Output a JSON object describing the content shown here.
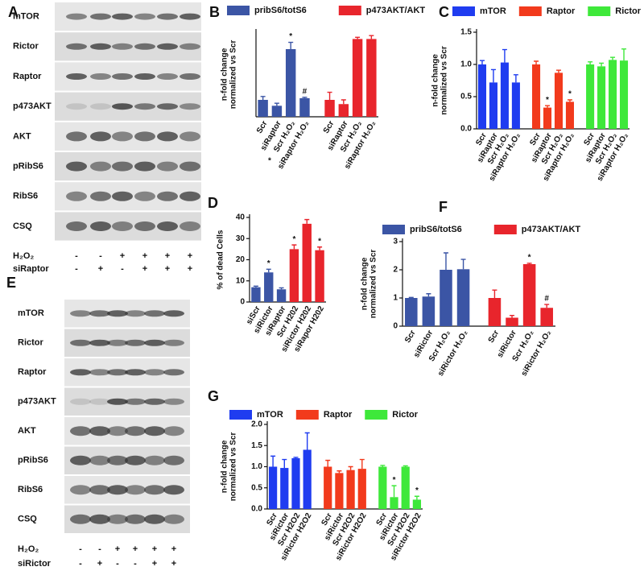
{
  "blots": [
    {
      "panel": "A",
      "rows": [
        "mTOR",
        "Rictor",
        "Raptor",
        "p473AKT",
        "AKT",
        "pRibS6",
        "RibS6",
        "CSQ"
      ],
      "treatments": [
        {
          "label": "H₂O₂",
          "marks": [
            "-",
            "-",
            "+",
            "+",
            "+",
            "+"
          ]
        },
        {
          "label": "siRaptor",
          "marks": [
            "-",
            "+",
            "-",
            "+",
            "+",
            "+"
          ]
        }
      ]
    },
    {
      "panel": "E",
      "rows": [
        "mTOR",
        "Rictor",
        "Raptor",
        "p473AKT",
        "AKT",
        "pRibS6",
        "RibS6",
        "CSQ"
      ],
      "treatments": [
        {
          "label": "H₂O₂",
          "marks": [
            "-",
            "-",
            "+",
            "+",
            "+",
            "+"
          ]
        },
        {
          "label": "siRictor",
          "marks": [
            "-",
            "+",
            "-",
            "-",
            "+",
            "+"
          ]
        }
      ]
    }
  ],
  "chart_data": [
    {
      "type": "bar",
      "panel": "B",
      "ylabel": [
        "n-fold change",
        "normalized vs Scr"
      ],
      "ylim": [
        0,
        5
      ],
      "categories": [
        "Scr",
        "siRaptor",
        "Scr H₂O₂",
        "siRaptor H₂O₂",
        "Scr",
        "siRaptor",
        "Scr H₂O₂",
        "siRaptor H₂O₂"
      ],
      "series": [
        {
          "name": "pribS6/totS6",
          "color": "#3b55a5",
          "values": [
            1.0,
            0.65,
            4.0,
            1.1,
            null,
            null,
            null,
            null
          ],
          "errors": [
            0.2,
            0.15,
            0.4,
            0.05,
            null,
            null,
            null,
            null
          ],
          "markers": [
            null,
            null,
            "*",
            "#",
            null,
            null,
            null,
            null
          ]
        },
        {
          "name": "p473AKT/AKT",
          "color": "#e8252c",
          "values": [
            null,
            null,
            null,
            null,
            1.0,
            0.75,
            4.6,
            4.6
          ],
          "errors": [
            null,
            null,
            null,
            null,
            0.45,
            0.25,
            0.1,
            0.2
          ],
          "markers": [
            null,
            null,
            null,
            null,
            null,
            null,
            null,
            null
          ]
        }
      ],
      "footnote": "*"
    },
    {
      "type": "bar",
      "panel": "C",
      "ylabel": [
        "n-fold change",
        "normalized vs Scr"
      ],
      "ylim": [
        0,
        1.5
      ],
      "yticks": [
        {
          "value": 0,
          "label": "0.0"
        },
        {
          "value": 0.5,
          "label": "0.5"
        },
        {
          "value": 1,
          "label": "1.0"
        },
        {
          "value": 1.5,
          "label": "1.5"
        }
      ],
      "categories": [
        "Scr",
        "siRaptor",
        "Scr H₂O₂",
        "siRaptor H₂O₂",
        "Scr",
        "siRaptor",
        "Scr H₂O₂",
        "siRaptor H₂O₂",
        "Scr",
        "siRaptor",
        "Scr H₂O₂",
        "siRaptor H₂O₂"
      ],
      "series": [
        {
          "name": "mTOR",
          "color": "#1f3cf0",
          "values": [
            1.0,
            0.72,
            1.03,
            0.72,
            null,
            null,
            null,
            null,
            null,
            null,
            null,
            null
          ],
          "errors": [
            0.06,
            0.2,
            0.2,
            0.12,
            null,
            null,
            null,
            null,
            null,
            null,
            null,
            null
          ],
          "markers": [
            null,
            null,
            null,
            null,
            null,
            null,
            null,
            null,
            null,
            null,
            null,
            null
          ]
        },
        {
          "name": "Raptor",
          "color": "#f23a1c",
          "values": [
            null,
            null,
            null,
            null,
            1.0,
            0.33,
            0.87,
            0.42,
            null,
            null,
            null,
            null
          ],
          "errors": [
            null,
            null,
            null,
            null,
            0.05,
            0.03,
            0.04,
            0.03,
            null,
            null,
            null,
            null
          ],
          "markers": [
            null,
            null,
            null,
            null,
            null,
            "*",
            null,
            "*",
            null,
            null,
            null,
            null
          ]
        },
        {
          "name": "Rictor",
          "color": "#3ee83a",
          "values": [
            null,
            null,
            null,
            null,
            null,
            null,
            null,
            null,
            1.0,
            0.97,
            1.07,
            1.06
          ],
          "errors": [
            null,
            null,
            null,
            null,
            null,
            null,
            null,
            null,
            0.04,
            0.05,
            0.04,
            0.18
          ],
          "markers": [
            null,
            null,
            null,
            null,
            null,
            null,
            null,
            null,
            null,
            null,
            null,
            null
          ]
        }
      ]
    },
    {
      "type": "bar",
      "panel": "D",
      "ylabel": [
        "% of dead Cells"
      ],
      "ylim": [
        0,
        40
      ],
      "yticks": [
        0,
        10,
        20,
        30,
        40
      ],
      "categories": [
        "siScr",
        "siRictor",
        "siRaptor",
        "Scr H202",
        "siRictor H202",
        "siRapor H202"
      ],
      "values": [
        7,
        14,
        6,
        25,
        37,
        24.5
      ],
      "errors": [
        0.5,
        1.5,
        0.7,
        2,
        2,
        1.5
      ],
      "markers": [
        null,
        "*",
        null,
        "*",
        null,
        "*"
      ],
      "colors": [
        "#3b55a5",
        "#3b55a5",
        "#3b55a5",
        "#e8252c",
        "#e8252c",
        "#e8252c"
      ]
    },
    {
      "type": "bar",
      "panel": "F",
      "ylabel": [
        "n-fold change",
        "normalized vs Scr"
      ],
      "ylim": [
        0,
        3
      ],
      "yticks": [
        0,
        1,
        2,
        3
      ],
      "categories": [
        "Scr",
        "siRictor",
        "Scr H₂O₂",
        "siRictor H₂O₂",
        "Scr",
        "siRictor",
        "Scr H₂O₂",
        "siRictor H₂O₂"
      ],
      "series": [
        {
          "name": "pribS6/totS6",
          "color": "#3b55a5",
          "values": [
            1.0,
            1.05,
            2.0,
            2.02,
            null,
            null,
            null,
            null
          ],
          "errors": [
            0.02,
            0.1,
            0.6,
            0.35,
            null,
            null,
            null,
            null
          ],
          "markers": [
            null,
            null,
            null,
            null,
            null,
            null,
            null,
            null
          ]
        },
        {
          "name": "p473AKT/AKT",
          "color": "#e8252c",
          "values": [
            null,
            null,
            null,
            null,
            1.0,
            0.3,
            2.2,
            0.65
          ],
          "errors": [
            null,
            null,
            null,
            null,
            0.28,
            0.08,
            0.03,
            0.12
          ],
          "markers": [
            null,
            null,
            null,
            null,
            null,
            null,
            "*",
            "#"
          ]
        }
      ]
    },
    {
      "type": "bar",
      "panel": "G",
      "ylabel": [
        "n-fold change",
        "normalized vs Scr"
      ],
      "ylim": [
        0,
        2
      ],
      "yticks": [
        {
          "value": 0,
          "label": "0.0"
        },
        {
          "value": 0.5,
          "label": "0.5"
        },
        {
          "value": 1,
          "label": "1.0"
        },
        {
          "value": 1.5,
          "label": "1.5"
        },
        {
          "value": 2,
          "label": "2.0"
        }
      ],
      "categories": [
        "Scr",
        "siRictor",
        "Scr H2O2",
        "siRictor H2O2",
        "Scr",
        "siRictor",
        "Scr H2O2",
        "siRictor H2O2",
        "Scr",
        "siRictor",
        "Scr H2O2",
        "siRictor H2O2"
      ],
      "series": [
        {
          "name": "mTOR",
          "color": "#1f3cf0",
          "values": [
            1.0,
            0.97,
            1.2,
            1.4,
            null,
            null,
            null,
            null,
            null,
            null,
            null,
            null
          ],
          "errors": [
            0.25,
            0.2,
            0.02,
            0.4,
            null,
            null,
            null,
            null,
            null,
            null,
            null,
            null
          ],
          "markers": [
            null,
            null,
            null,
            null,
            null,
            null,
            null,
            null,
            null,
            null,
            null,
            null
          ]
        },
        {
          "name": "Raptor",
          "color": "#f23a1c",
          "values": [
            null,
            null,
            null,
            null,
            1.0,
            0.85,
            0.92,
            0.95,
            null,
            null,
            null,
            null
          ],
          "errors": [
            null,
            null,
            null,
            null,
            0.15,
            0.05,
            0.08,
            0.22,
            null,
            null,
            null,
            null
          ],
          "markers": [
            null,
            null,
            null,
            null,
            null,
            null,
            null,
            null,
            null,
            null,
            null,
            null
          ]
        },
        {
          "name": "Rictor",
          "color": "#3ee83a",
          "values": [
            null,
            null,
            null,
            null,
            null,
            null,
            null,
            null,
            1.0,
            0.28,
            1.0,
            0.22
          ],
          "errors": [
            null,
            null,
            null,
            null,
            null,
            null,
            null,
            null,
            0.03,
            0.27,
            0.02,
            0.08
          ],
          "markers": [
            null,
            null,
            null,
            null,
            null,
            null,
            null,
            null,
            null,
            "*",
            null,
            "*"
          ]
        }
      ]
    }
  ]
}
